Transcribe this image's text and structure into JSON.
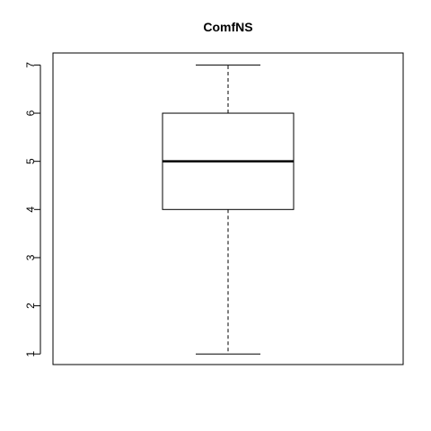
{
  "chart_data": {
    "type": "boxplot",
    "title": "ComfNS",
    "xlabel": "",
    "ylabel": "",
    "ylim": [
      0.78,
      7.25
    ],
    "yticks": [
      "1",
      "2",
      "3",
      "4",
      "5",
      "6",
      "7"
    ],
    "box": {
      "min": 1,
      "q1": 4,
      "median": 5,
      "q3": 6,
      "max": 7
    },
    "grid": false,
    "legend": "none"
  }
}
